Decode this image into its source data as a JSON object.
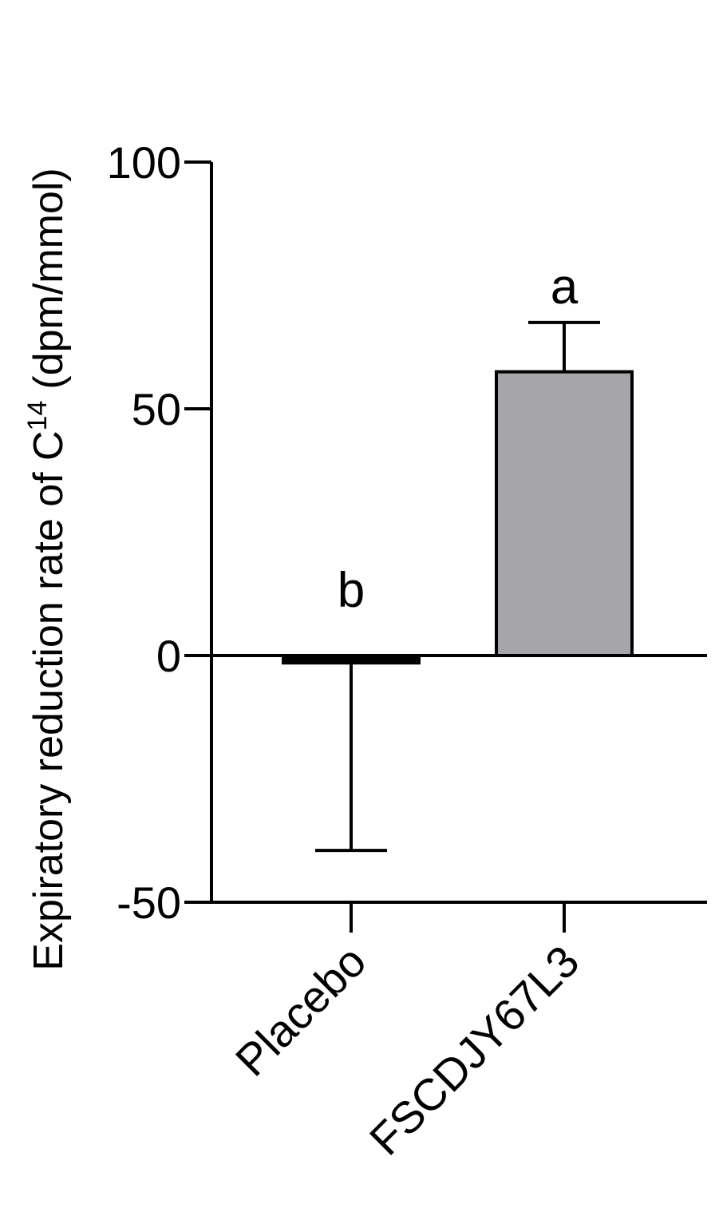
{
  "chart_data": {
    "type": "bar",
    "categories": [
      "Placebo",
      "FSCDJY67L3"
    ],
    "values": [
      -1.5,
      57.5
    ],
    "error_bars": [
      {
        "direction": "down",
        "end": -39.5
      },
      {
        "direction": "up",
        "end": 67.5
      }
    ],
    "significance_labels": [
      "b",
      "a"
    ],
    "bar_colors": [
      "#000000",
      "#a6a6aa"
    ],
    "ylabel_main": "Expiratory reduction rate of C",
    "ylabel_sup": "14",
    "ylabel_units": "(dpm/mmol)",
    "yticks": [
      -50,
      0,
      50,
      100
    ],
    "ytick_labels": [
      "-50",
      "0",
      "50",
      "100"
    ],
    "ylim": [
      -50,
      100
    ],
    "grid": false
  }
}
